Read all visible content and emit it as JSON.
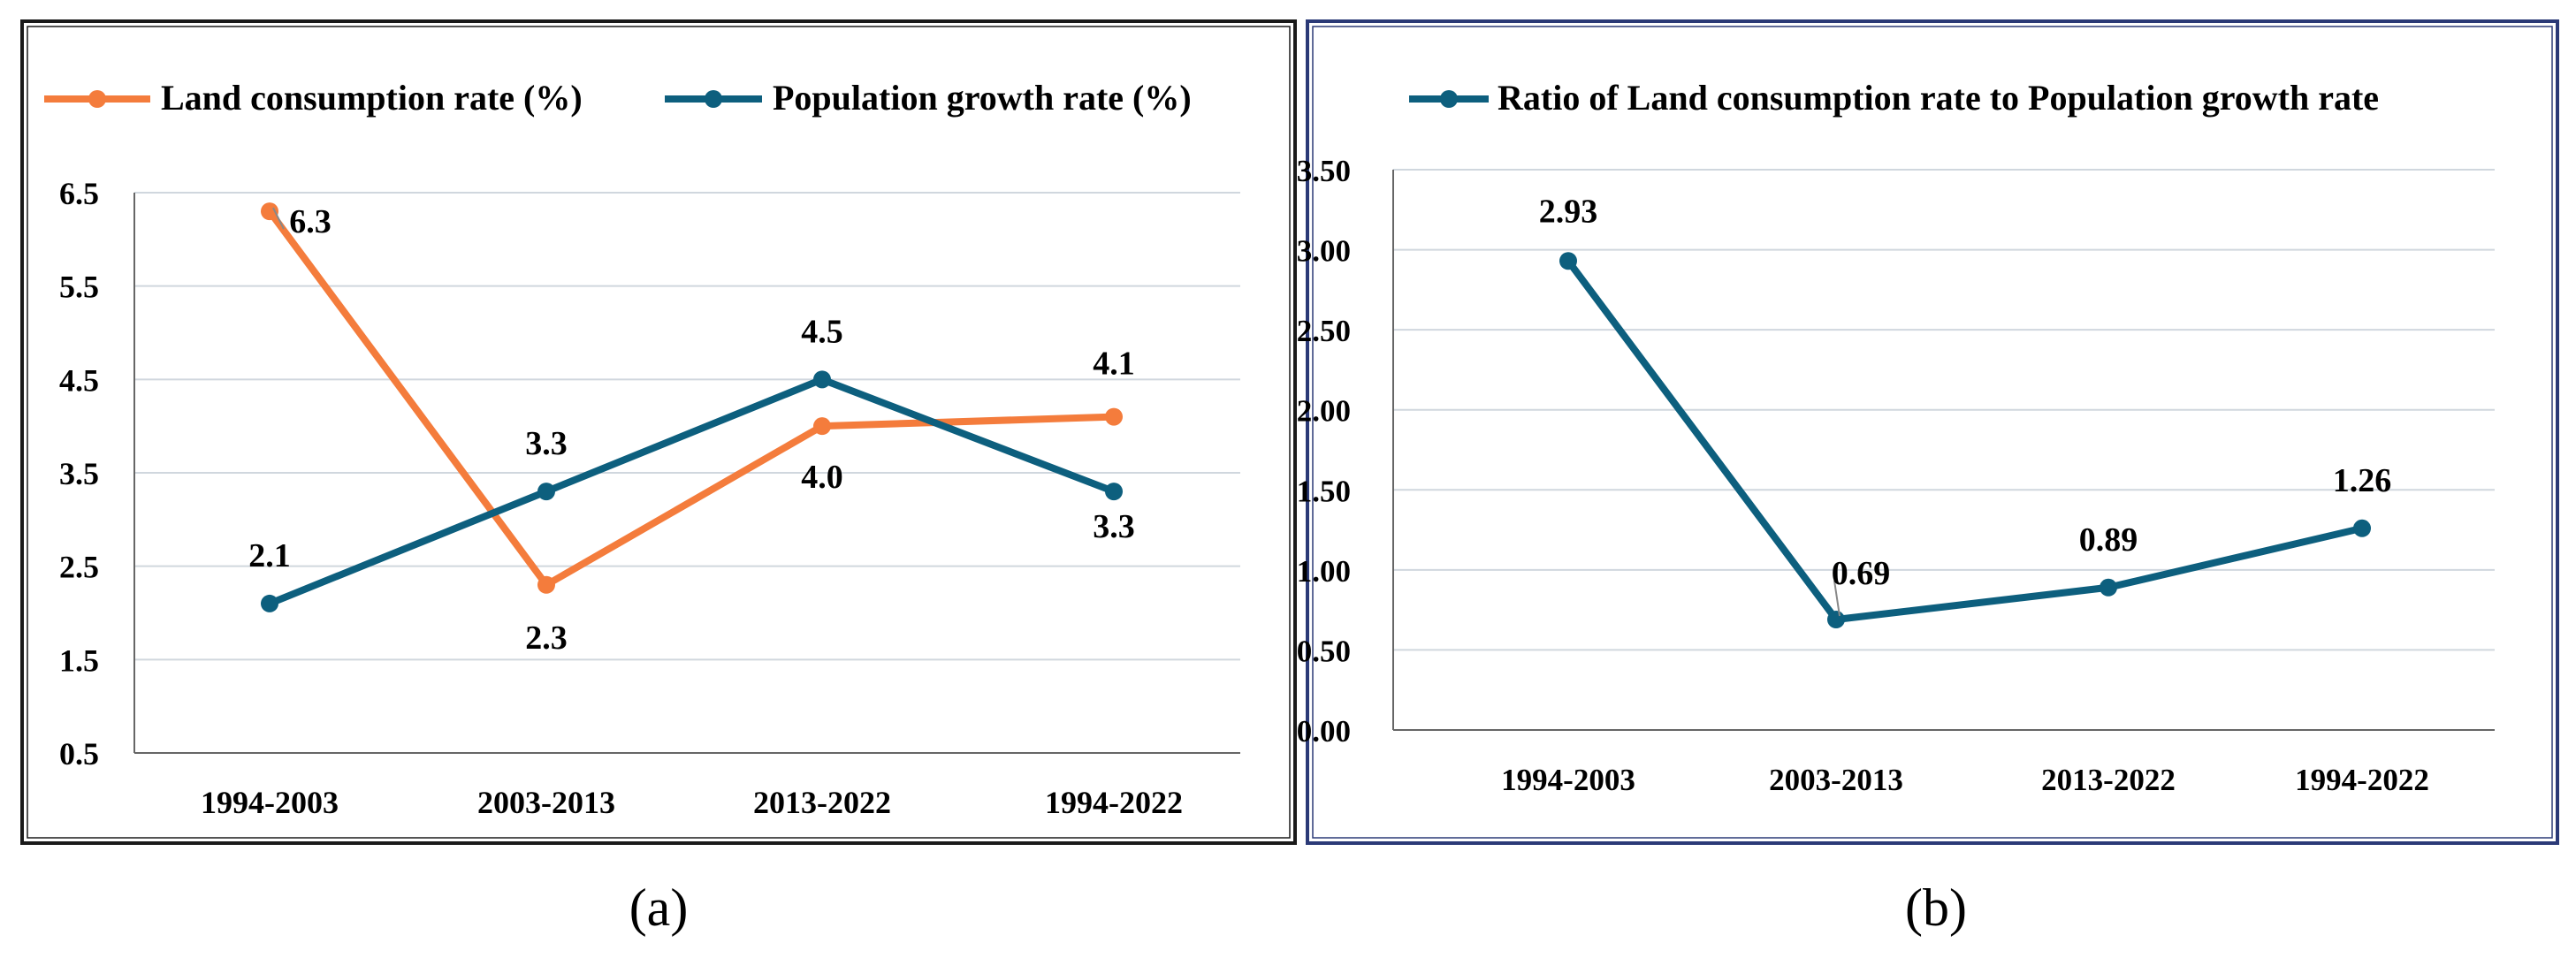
{
  "colors": {
    "orange": "#f47c3c",
    "teal": "#0d5f7e",
    "grid": "#d0d7de",
    "text": "#000000"
  },
  "chart_data": [
    {
      "type": "line",
      "panel_label": "(a)",
      "categories": [
        "1994-2003",
        "2003-2013",
        "2013-2022",
        "1994-2022"
      ],
      "series": [
        {
          "name": "Land consumption rate (%)",
          "values": [
            6.3,
            2.3,
            4.0,
            4.1
          ],
          "labels": [
            "6.3",
            "2.3",
            "4.0",
            "4.1"
          ]
        },
        {
          "name": "Population growth rate (%)",
          "values": [
            2.1,
            3.3,
            4.5,
            3.3
          ],
          "labels": [
            "2.1",
            "3.3",
            "4.5",
            "3.3"
          ]
        }
      ],
      "ylim": [
        0.5,
        6.5
      ],
      "yticks": [
        0.5,
        1.5,
        2.5,
        3.5,
        4.5,
        5.5,
        6.5
      ],
      "ytick_labels": [
        "0.5",
        "1.5",
        "2.5",
        "3.5",
        "4.5",
        "5.5",
        "6.5"
      ],
      "grid": true,
      "legend": "top"
    },
    {
      "type": "line",
      "panel_label": "(b)",
      "categories": [
        "1994-2003",
        "2003-2013",
        "2013-2022",
        "1994-2022"
      ],
      "series": [
        {
          "name": "Ratio of Land consumption rate to Population growth rate",
          "values": [
            2.93,
            0.69,
            0.89,
            1.26
          ],
          "labels": [
            "2.93",
            "0.69",
            "0.89",
            "1.26"
          ]
        }
      ],
      "ylim": [
        0.0,
        3.5
      ],
      "yticks": [
        0.0,
        0.5,
        1.0,
        1.5,
        2.0,
        2.5,
        3.0,
        3.5
      ],
      "ytick_labels": [
        "0.00",
        "0.50",
        "1.00",
        "1.50",
        "2.00",
        "2.50",
        "3.00",
        "3.50"
      ],
      "grid": true,
      "legend": "top"
    }
  ]
}
